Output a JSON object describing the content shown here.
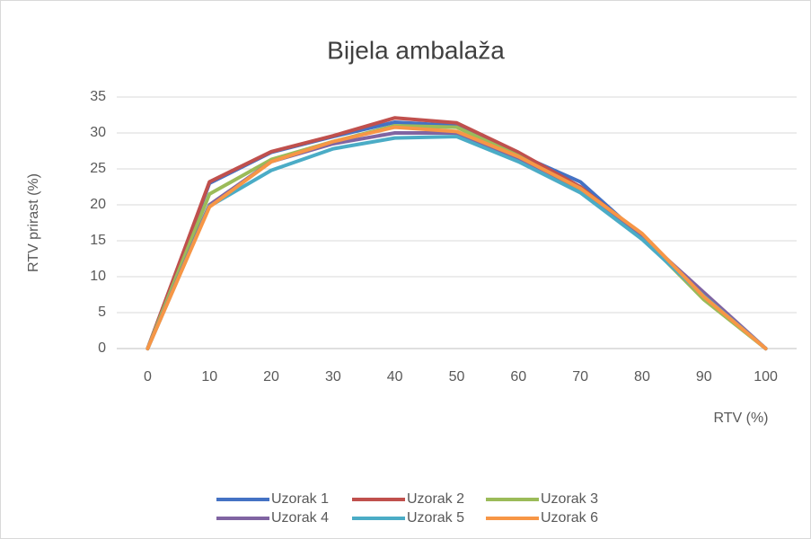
{
  "chart_data": {
    "type": "line",
    "title": "Bijela ambalaža",
    "x_label": "RTV (%)",
    "y_label": "RTV prirast (%)",
    "x": [
      0,
      10,
      20,
      30,
      40,
      50,
      60,
      70,
      80,
      90,
      100
    ],
    "xlim": [
      -5,
      105
    ],
    "xticks": [
      0,
      10,
      20,
      30,
      40,
      50,
      60,
      70,
      80,
      90,
      100
    ],
    "ylim": [
      0,
      35
    ],
    "yticks": [
      0,
      5,
      10,
      15,
      20,
      25,
      30,
      35
    ],
    "grid": true,
    "legend": "bottom",
    "series": [
      {
        "name": "Uzorak 1",
        "color": "#4472c4",
        "values": [
          0,
          23,
          27.3,
          29.5,
          31.5,
          31,
          27,
          23.2,
          15.5,
          7.5,
          0
        ]
      },
      {
        "name": "Uzorak 2",
        "color": "#c0504d",
        "values": [
          0,
          23.2,
          27.4,
          29.6,
          32.1,
          31.4,
          27.3,
          22.5,
          15.8,
          7.2,
          0
        ]
      },
      {
        "name": "Uzorak 3",
        "color": "#9bbb59",
        "values": [
          0,
          21.5,
          26.3,
          28.8,
          31,
          30.8,
          26.8,
          22,
          15.5,
          6.8,
          0
        ]
      },
      {
        "name": "Uzorak 4",
        "color": "#8064a2",
        "values": [
          0,
          20,
          26,
          28.5,
          30,
          30,
          26.5,
          22.3,
          15.6,
          7.8,
          0
        ]
      },
      {
        "name": "Uzorak 5",
        "color": "#4bacc6",
        "values": [
          0,
          19.8,
          24.8,
          27.8,
          29.3,
          29.5,
          26,
          21.7,
          15.2,
          7.3,
          0
        ]
      },
      {
        "name": "Uzorak 6",
        "color": "#f79646",
        "values": [
          0,
          19.7,
          26,
          28.8,
          30.8,
          30.2,
          26.7,
          22.3,
          16,
          7.2,
          0
        ]
      }
    ]
  }
}
